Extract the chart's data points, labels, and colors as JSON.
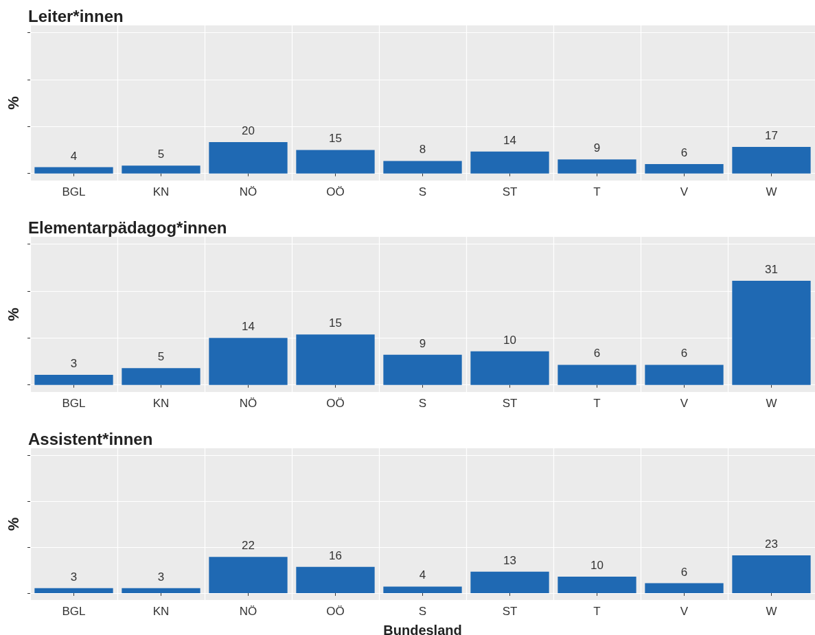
{
  "chart_data": [
    {
      "type": "bar",
      "title": "Leiter*innen",
      "ylabel": "%",
      "categories": [
        "BGL",
        "KN",
        "NÖ",
        "OÖ",
        "S",
        "ST",
        "T",
        "V",
        "W"
      ],
      "values": [
        4,
        5,
        20,
        15,
        8,
        14,
        9,
        6,
        17
      ],
      "color": "#1f69b3",
      "data_labels": true,
      "ylim": [
        -4.5,
        94.5
      ],
      "yticks": [
        {
          "value": 0,
          "label": null
        },
        {
          "value": 30,
          "label": null
        },
        {
          "value": 60,
          "label": null
        },
        {
          "value": 90,
          "label": null
        }
      ],
      "tick_labels": "x",
      "grid": true
    },
    {
      "type": "bar",
      "title": "Elementarpädagog*innen",
      "ylabel": "%",
      "categories": [
        "BGL",
        "KN",
        "NÖ",
        "OÖ",
        "S",
        "ST",
        "T",
        "V",
        "W"
      ],
      "values": [
        3,
        5,
        14,
        15,
        9,
        10,
        6,
        6,
        31
      ],
      "color": "#1f69b3",
      "data_labels": true,
      "ylim": [
        -2.1,
        44.1
      ],
      "yticks": [
        {
          "value": 0,
          "label": null
        },
        {
          "value": 14,
          "label": null
        },
        {
          "value": 28,
          "label": null
        },
        {
          "value": 42,
          "label": null
        }
      ],
      "tick_labels": "x",
      "grid": true
    },
    {
      "type": "bar",
      "title": "Assistent*innen",
      "ylabel": "%",
      "xlabel": "Bundesland",
      "categories": [
        "BGL",
        "KN",
        "NÖ",
        "OÖ",
        "S",
        "ST",
        "T",
        "V",
        "W"
      ],
      "values": [
        3,
        3,
        22,
        16,
        4,
        13,
        10,
        6,
        23
      ],
      "color": "#1f69b3",
      "data_labels": true,
      "ylim": [
        -4.2,
        88.2
      ],
      "yticks": [
        {
          "value": 0,
          "label": null
        },
        {
          "value": 28,
          "label": null
        },
        {
          "value": 56,
          "label": null
        },
        {
          "value": 84,
          "label": null
        }
      ],
      "tick_labels": "x",
      "grid": true
    }
  ]
}
